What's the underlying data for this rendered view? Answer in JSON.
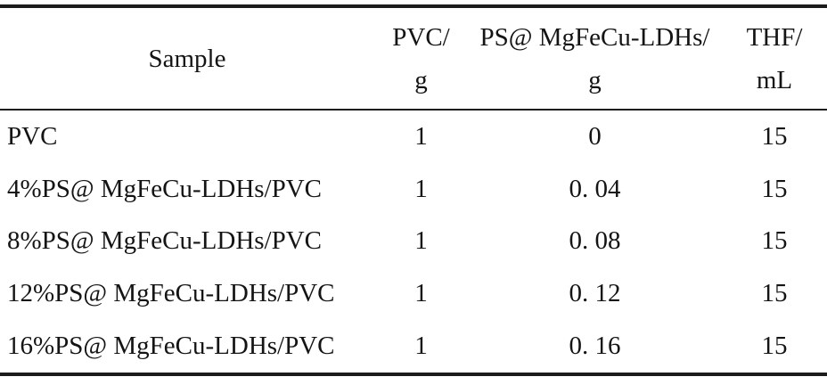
{
  "table": {
    "title_semantic": "sample-composition-table",
    "columns": [
      {
        "label": "Sample",
        "unit": ""
      },
      {
        "label": "PVC/",
        "unit": "g"
      },
      {
        "label": "PS@ MgFeCu-LDHs/",
        "unit": "g"
      },
      {
        "label": "THF/",
        "unit": "mL"
      }
    ],
    "rows": [
      {
        "sample": "PVC",
        "pvc_g": "1",
        "ps_ldhs_g": "0",
        "thf_ml": "15"
      },
      {
        "sample": "4%PS@ MgFeCu-LDHs/PVC",
        "pvc_g": "1",
        "ps_ldhs_g": "0. 04",
        "thf_ml": "15"
      },
      {
        "sample": "8%PS@ MgFeCu-LDHs/PVC",
        "pvc_g": "1",
        "ps_ldhs_g": "0. 08",
        "thf_ml": "15"
      },
      {
        "sample": "12%PS@ MgFeCu-LDHs/PVC",
        "pvc_g": "1",
        "ps_ldhs_g": "0. 12",
        "thf_ml": "15"
      },
      {
        "sample": "16%PS@ MgFeCu-LDHs/PVC",
        "pvc_g": "1",
        "ps_ldhs_g": "0. 16",
        "thf_ml": "15"
      }
    ],
    "colors": {
      "rule": "#1c1c1c",
      "text": "#141414",
      "background": "#ffffff"
    }
  }
}
